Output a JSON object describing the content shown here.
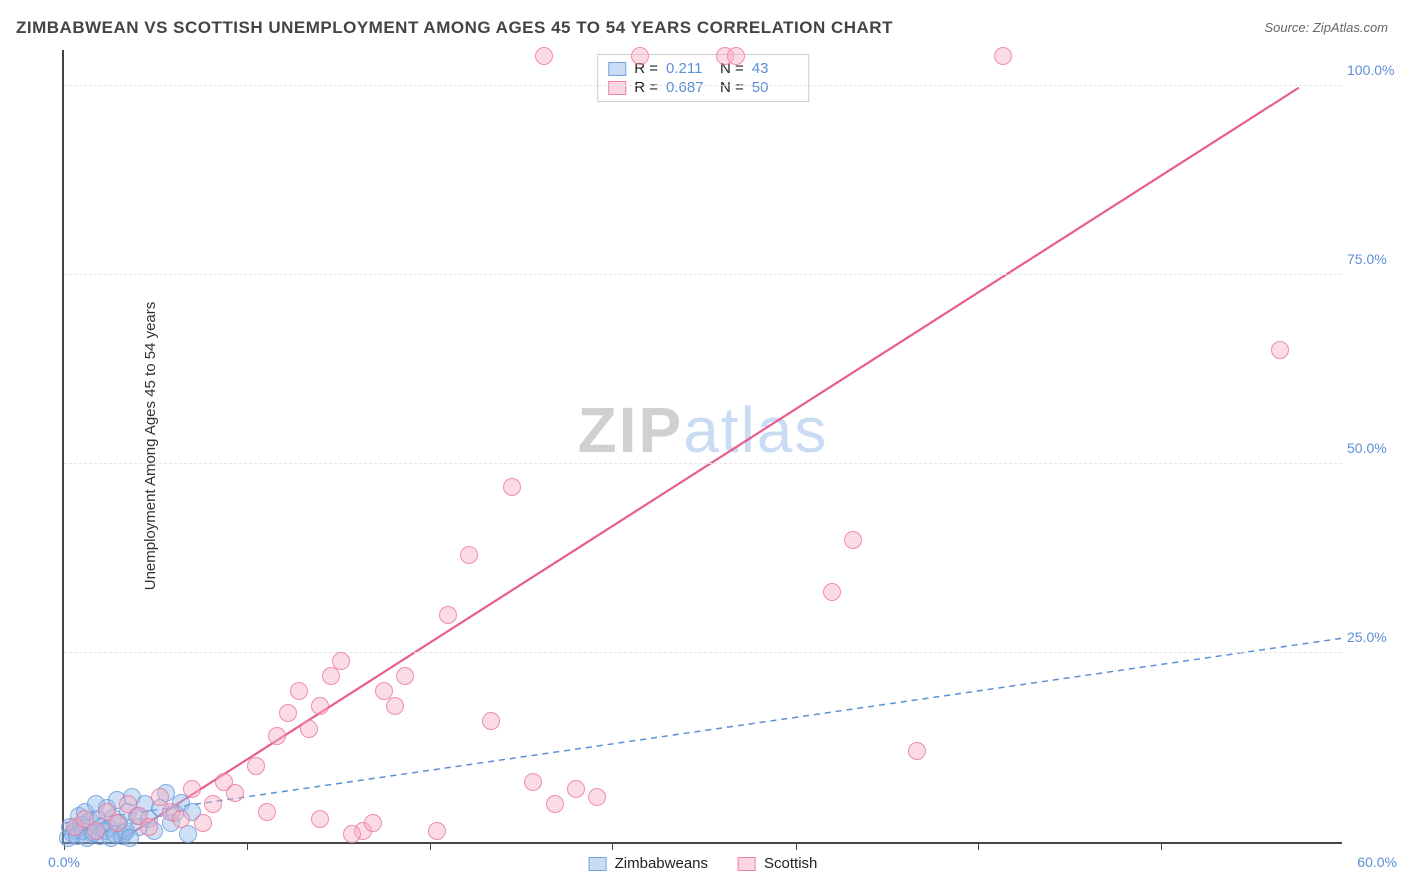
{
  "title": "ZIMBABWEAN VS SCOTTISH UNEMPLOYMENT AMONG AGES 45 TO 54 YEARS CORRELATION CHART",
  "source": "Source: ZipAtlas.com",
  "ylabel": "Unemployment Among Ages 45 to 54 years",
  "watermark": {
    "part1": "ZIP",
    "part2": "atlas"
  },
  "chart": {
    "type": "scatter",
    "xlim": [
      0,
      60
    ],
    "ylim": [
      0,
      105
    ],
    "y_ticks": [
      25,
      50,
      75,
      100
    ],
    "y_tick_labels": [
      "25.0%",
      "50.0%",
      "75.0%",
      "100.0%"
    ],
    "x_ticks": [
      0,
      8.57,
      17.14,
      25.71,
      34.29,
      42.86,
      51.43
    ],
    "x_origin_label": "0.0%",
    "x_max_label": "60.0%",
    "background_color": "#ffffff",
    "grid_color": "#e5e5e5",
    "series": [
      {
        "name": "Zimbabweans",
        "color_fill": "rgba(147,186,233,0.45)",
        "color_stroke": "rgba(100,150,220,0.7)",
        "R": "0.211",
        "N": "43",
        "trend": {
          "x1": 0,
          "y1": 2.5,
          "x2": 60,
          "y2": 27,
          "dash": "6,5",
          "stroke": "#5b8fd6",
          "width": 1.5
        },
        "points": [
          [
            0.3,
            2.0
          ],
          [
            0.5,
            1.5
          ],
          [
            0.7,
            3.5
          ],
          [
            0.8,
            2.2
          ],
          [
            1.0,
            4.0
          ],
          [
            1.2,
            2.8
          ],
          [
            1.3,
            1.0
          ],
          [
            1.5,
            5.0
          ],
          [
            1.6,
            3.0
          ],
          [
            1.8,
            2.0
          ],
          [
            2.0,
            4.5
          ],
          [
            2.1,
            1.8
          ],
          [
            2.3,
            3.2
          ],
          [
            2.5,
            5.5
          ],
          [
            2.6,
            2.5
          ],
          [
            2.8,
            1.2
          ],
          [
            3.0,
            4.0
          ],
          [
            3.2,
            6.0
          ],
          [
            3.4,
            3.5
          ],
          [
            3.5,
            2.0
          ],
          [
            3.8,
            5.0
          ],
          [
            4.0,
            3.0
          ],
          [
            4.2,
            1.5
          ],
          [
            4.5,
            4.5
          ],
          [
            4.8,
            6.5
          ],
          [
            5.0,
            2.5
          ],
          [
            5.2,
            3.8
          ],
          [
            5.5,
            5.2
          ],
          [
            5.8,
            1.0
          ],
          [
            6.0,
            4.0
          ],
          [
            0.2,
            0.5
          ],
          [
            0.4,
            1.0
          ],
          [
            0.6,
            0.8
          ],
          [
            0.9,
            1.5
          ],
          [
            1.1,
            0.5
          ],
          [
            1.4,
            1.2
          ],
          [
            1.7,
            0.8
          ],
          [
            1.9,
            1.5
          ],
          [
            2.2,
            0.5
          ],
          [
            2.4,
            1.0
          ],
          [
            2.7,
            0.8
          ],
          [
            2.9,
            1.5
          ],
          [
            3.1,
            0.5
          ]
        ]
      },
      {
        "name": "Scottish",
        "color_fill": "rgba(247,175,196,0.45)",
        "color_stroke": "rgba(233,110,150,0.7)",
        "R": "0.687",
        "N": "50",
        "trend": {
          "x1": 2.5,
          "y1": 0,
          "x2": 58,
          "y2": 100,
          "dash": "",
          "stroke": "#e85d8c",
          "width": 2.2
        },
        "points": [
          [
            0.5,
            2.0
          ],
          [
            1.0,
            3.0
          ],
          [
            1.5,
            1.5
          ],
          [
            2.0,
            4.0
          ],
          [
            2.5,
            2.5
          ],
          [
            3.0,
            5.0
          ],
          [
            3.5,
            3.5
          ],
          [
            4.0,
            2.0
          ],
          [
            4.5,
            6.0
          ],
          [
            5.0,
            4.0
          ],
          [
            5.5,
            3.0
          ],
          [
            6.0,
            7.0
          ],
          [
            6.5,
            2.5
          ],
          [
            7.0,
            5.0
          ],
          [
            7.5,
            8.0
          ],
          [
            8.0,
            6.5
          ],
          [
            9.0,
            10.0
          ],
          [
            9.5,
            4.0
          ],
          [
            10.0,
            14.0
          ],
          [
            10.5,
            17.0
          ],
          [
            11.0,
            20.0
          ],
          [
            11.5,
            15.0
          ],
          [
            12.0,
            18.0
          ],
          [
            12.5,
            22.0
          ],
          [
            13.0,
            24.0
          ],
          [
            14.0,
            1.5
          ],
          [
            14.5,
            2.5
          ],
          [
            15.0,
            20.0
          ],
          [
            15.5,
            18.0
          ],
          [
            16.0,
            22.0
          ],
          [
            17.5,
            1.5
          ],
          [
            18.0,
            30.0
          ],
          [
            19.0,
            38.0
          ],
          [
            20.0,
            16.0
          ],
          [
            21.0,
            47.0
          ],
          [
            22.0,
            8.0
          ],
          [
            23.0,
            5.0
          ],
          [
            24.0,
            7.0
          ],
          [
            25.0,
            6.0
          ],
          [
            22.5,
            104.0
          ],
          [
            27.0,
            104.0
          ],
          [
            31.0,
            104.0
          ],
          [
            31.5,
            104.0
          ],
          [
            44.0,
            104.0
          ],
          [
            40.0,
            12.0
          ],
          [
            57.0,
            65.0
          ],
          [
            37.0,
            40.0
          ],
          [
            36.0,
            33.0
          ],
          [
            13.5,
            1.0
          ],
          [
            12.0,
            3.0
          ]
        ]
      }
    ]
  },
  "legend_rn": {
    "rows": [
      {
        "swatch": "blue",
        "R_label": "R =",
        "R_val": "0.211",
        "N_label": "N =",
        "N_val": "43"
      },
      {
        "swatch": "pink",
        "R_label": "R =",
        "R_val": "0.687",
        "N_label": "N =",
        "N_val": "50"
      }
    ]
  },
  "legend_bottom": [
    {
      "swatch": "blue",
      "label": "Zimbabweans"
    },
    {
      "swatch": "pink",
      "label": "Scottish"
    }
  ]
}
